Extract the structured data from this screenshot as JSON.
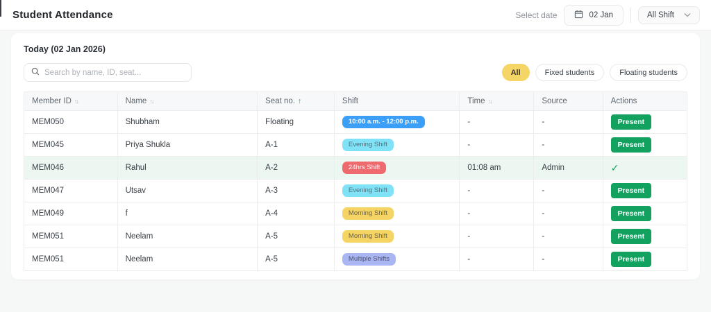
{
  "header": {
    "title": "Student Attendance",
    "select_date_label": "Select date",
    "date_value": "02 Jan",
    "shift_filter_value": "All Shift"
  },
  "toolbar": {
    "today_label": "Today (02 Jan 2026)",
    "search_placeholder": "Search by name, ID, seat...",
    "filters": [
      {
        "label": "All",
        "active": true
      },
      {
        "label": "Fixed students",
        "active": false
      },
      {
        "label": "Floating students",
        "active": false
      }
    ]
  },
  "table": {
    "columns": [
      {
        "label": "Member ID",
        "sort": "both"
      },
      {
        "label": "Name",
        "sort": "both"
      },
      {
        "label": "Seat no.",
        "sort": "asc"
      },
      {
        "label": "Shift",
        "sort": "none"
      },
      {
        "label": "Time",
        "sort": "both"
      },
      {
        "label": "Source",
        "sort": "none"
      },
      {
        "label": "Actions",
        "sort": "none"
      }
    ],
    "rows": [
      {
        "member_id": "MEM050",
        "name": "Shubham",
        "seat": "Floating",
        "shift": {
          "label": "10:00 a.m. - 12:00 p.m.",
          "type": "time"
        },
        "time": "-",
        "source": "-",
        "action": "Present",
        "highlighted": false
      },
      {
        "member_id": "MEM045",
        "name": "Priya Shukla",
        "seat": "A-1",
        "shift": {
          "label": "Evening Shift",
          "type": "evening"
        },
        "time": "-",
        "source": "-",
        "action": "Present",
        "highlighted": false
      },
      {
        "member_id": "MEM046",
        "name": "Rahul",
        "seat": "A-2",
        "shift": {
          "label": "24hrs Shift",
          "type": "full"
        },
        "time": "01:08 am",
        "source": "Admin",
        "action": "check",
        "highlighted": true
      },
      {
        "member_id": "MEM047",
        "name": "Utsav",
        "seat": "A-3",
        "shift": {
          "label": "Evening Shift",
          "type": "evening"
        },
        "time": "-",
        "source": "-",
        "action": "Present",
        "highlighted": false
      },
      {
        "member_id": "MEM049",
        "name": "f",
        "seat": "A-4",
        "shift": {
          "label": "Morning Shift",
          "type": "morning"
        },
        "time": "-",
        "source": "-",
        "action": "Present",
        "highlighted": false
      },
      {
        "member_id": "MEM051",
        "name": "Neelam",
        "seat": "A-5",
        "shift": {
          "label": "Morning Shift",
          "type": "morning"
        },
        "time": "-",
        "source": "-",
        "action": "Present",
        "highlighted": false
      },
      {
        "member_id": "MEM051",
        "name": "Neelam",
        "seat": "A-5",
        "shift": {
          "label": "Multiple Shifts",
          "type": "multiple"
        },
        "time": "-",
        "source": "-",
        "action": "Present",
        "highlighted": false
      }
    ]
  },
  "icons": {
    "sort_both": "↑↓",
    "sort_asc": "↑",
    "check": "✓"
  },
  "colors": {
    "page-bg": "#f6f7f7",
    "accent-green": "#12a15f",
    "active-filter-yellow": "#f5d565",
    "badge-time-blue": "#3b9ff8",
    "badge-evening-cyan": "#7fe2f6",
    "badge-24hrs-red": "#ee6a6e",
    "badge-morning-yellow": "#f5d464",
    "badge-multiple-purple": "#aab6f2",
    "row-highlight-green": "#edf7f1"
  }
}
